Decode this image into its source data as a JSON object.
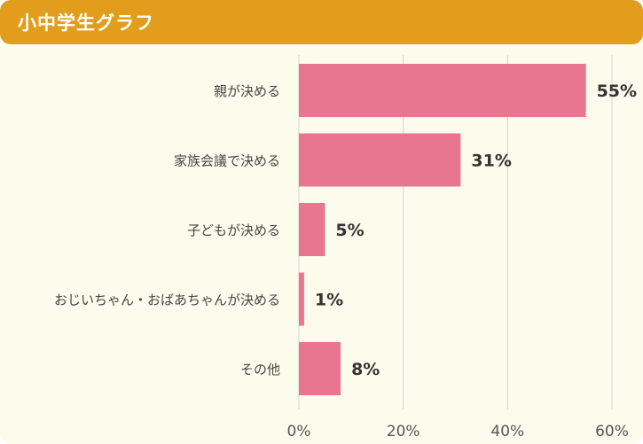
{
  "header": {
    "title": "小中学生グラフ"
  },
  "colors": {
    "bar": "#e8768e",
    "header": "#e29d1c",
    "background": "#fdfbec",
    "grid": "#d4d4cc"
  },
  "chart_data": {
    "type": "bar",
    "orientation": "horizontal",
    "categories": [
      "親が決める",
      "家族会議で決める",
      "子どもが決める",
      "おじいちゃん・おばあちゃんが決める",
      "その他"
    ],
    "values": [
      55,
      31,
      5,
      1,
      8
    ],
    "value_labels": [
      "55%",
      "31%",
      "5%",
      "1%",
      "8%"
    ],
    "xlim": [
      0,
      60
    ],
    "xticks": [
      0,
      20,
      40,
      60
    ],
    "xtick_labels": [
      "0%",
      "20%",
      "40%",
      "60%"
    ],
    "grid": true,
    "legend": "none"
  }
}
